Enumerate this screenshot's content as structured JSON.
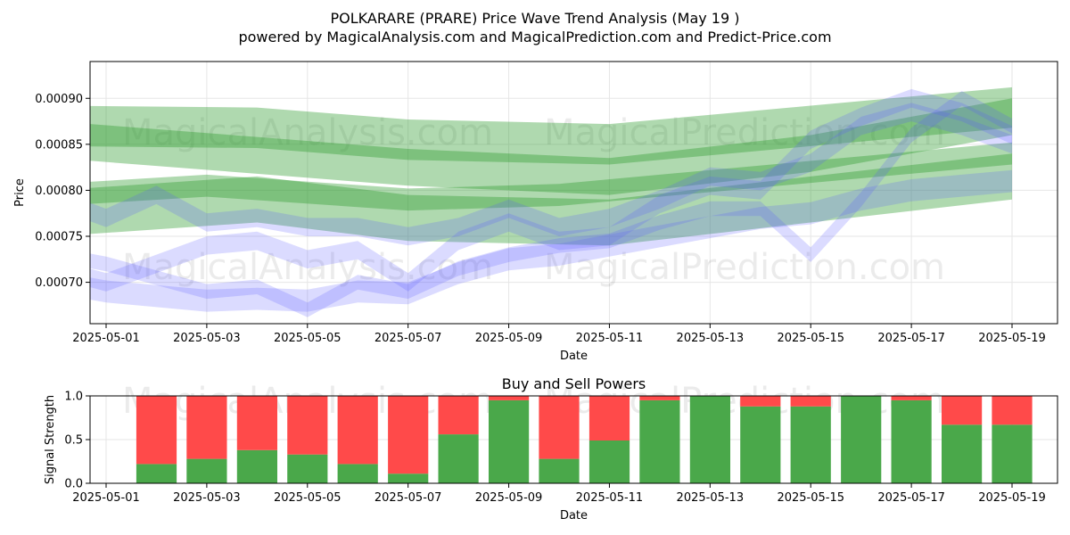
{
  "title": "POLKARARE (PRARE) Price Wave Trend Analysis (May 19 )",
  "subtitle": "powered by MagicalAnalysis.com and MagicalPrediction.com and Predict-Price.com",
  "watermarks": [
    "MagicalAnalysis.com",
    "MagicalPrediction.com"
  ],
  "colors": {
    "green_band": "#2e9a2e",
    "blue_band": "#5a5aff",
    "buy": "#4aa84a",
    "sell": "#ff4a4a",
    "grid": "#e6e6e6"
  },
  "chart_data": [
    {
      "type": "area",
      "title": "",
      "xlabel": "Date",
      "ylabel": "Price",
      "x_ticks": [
        "2025-05-01",
        "2025-05-03",
        "2025-05-05",
        "2025-05-07",
        "2025-05-09",
        "2025-05-11",
        "2025-05-13",
        "2025-05-15",
        "2025-05-17",
        "2025-05-19"
      ],
      "y_ticks": [
        "0.00070",
        "0.00075",
        "0.00080",
        "0.00085",
        "0.00090"
      ],
      "xlim": [
        "2025-04-30",
        "2025-05-20"
      ],
      "ylim": [
        0.000655,
        0.00094
      ],
      "grid": true,
      "series": [
        {
          "color": "green",
          "x": [
            "2025-04-30",
            "2025-05-04",
            "2025-05-07",
            "2025-05-11",
            "2025-05-15",
            "2025-05-19"
          ],
          "center": [
            0.00087,
            0.000868,
            0.000855,
            0.00085,
            0.00087,
            0.00089
          ],
          "half_width": 2.2e-05
        },
        {
          "color": "green",
          "x": [
            "2025-04-30",
            "2025-05-04",
            "2025-05-07",
            "2025-05-11",
            "2025-05-15",
            "2025-05-19"
          ],
          "center": [
            0.000855,
            0.000838,
            0.000825,
            0.000815,
            0.00084,
            0.00088
          ],
          "half_width": 2e-05
        },
        {
          "color": "green",
          "x": [
            "2025-04-30",
            "2025-05-04",
            "2025-05-07",
            "2025-05-11",
            "2025-05-15",
            "2025-05-19"
          ],
          "center": [
            0.000775,
            0.00079,
            0.00077,
            0.000765,
            0.00079,
            0.000815
          ],
          "half_width": 2.5e-05
        },
        {
          "color": "green",
          "x": [
            "2025-04-30",
            "2025-05-03",
            "2025-05-07",
            "2025-05-10",
            "2025-05-14",
            "2025-05-19"
          ],
          "center": [
            0.000795,
            0.000805,
            0.00079,
            0.000795,
            0.000815,
            0.00084
          ],
          "half_width": 1.2e-05
        },
        {
          "color": "blue",
          "x": [
            "2025-04-30",
            "2025-05-01",
            "2025-05-02",
            "2025-05-03",
            "2025-05-04",
            "2025-05-05",
            "2025-05-06",
            "2025-05-07",
            "2025-05-08",
            "2025-05-09",
            "2025-05-10",
            "2025-05-11",
            "2025-05-12",
            "2025-05-13",
            "2025-05-14",
            "2025-05-15",
            "2025-05-16",
            "2025-05-17",
            "2025-05-18",
            "2025-05-19"
          ],
          "center": [
            0.000715,
            0.0007,
            0.00072,
            0.00074,
            0.000745,
            0.000725,
            0.000735,
            0.0007,
            0.000745,
            0.000765,
            0.000745,
            0.00075,
            0.000785,
            0.000805,
            0.0008,
            0.000855,
            0.00088,
            0.0009,
            0.000885,
            0.00086
          ],
          "half_width": 1e-05
        },
        {
          "color": "blue",
          "x": [
            "2025-04-30",
            "2025-05-01",
            "2025-05-02",
            "2025-05-03",
            "2025-05-04",
            "2025-05-05",
            "2025-05-06",
            "2025-05-07",
            "2025-05-08",
            "2025-05-09",
            "2025-05-10",
            "2025-05-11",
            "2025-05-12",
            "2025-05-13",
            "2025-05-14",
            "2025-05-15",
            "2025-05-16",
            "2025-05-17",
            "2025-05-18",
            "2025-05-19"
          ],
          "center": [
            0.00079,
            0.00077,
            0.000795,
            0.000765,
            0.00077,
            0.00076,
            0.00076,
            0.00075,
            0.00076,
            0.00078,
            0.00076,
            0.00077,
            0.00079,
            0.000815,
            0.00081,
            0.00083,
            0.00087,
            0.000885,
            0.00087,
            0.00085
          ],
          "half_width": 1e-05
        },
        {
          "color": "blue",
          "x": [
            "2025-04-30",
            "2025-05-01",
            "2025-05-02",
            "2025-05-03",
            "2025-05-04",
            "2025-05-05",
            "2025-05-06",
            "2025-05-07",
            "2025-05-08",
            "2025-05-09",
            "2025-05-10",
            "2025-05-11",
            "2025-05-12",
            "2025-05-13",
            "2025-05-14",
            "2025-05-15",
            "2025-05-16",
            "2025-05-17",
            "2025-05-18",
            "2025-05-19"
          ],
          "center": [
            0.0007,
            0.00069,
            0.000685,
            0.00068,
            0.000682,
            0.00068,
            0.00069,
            0.000688,
            0.00071,
            0.000725,
            0.00073,
            0.00074,
            0.00075,
            0.00076,
            0.00077,
            0.000775,
            0.00079,
            0.0008,
            0.000805,
            0.00081
          ],
          "half_width": 1.2e-05
        },
        {
          "color": "blue",
          "x": [
            "2025-04-30",
            "2025-05-01",
            "2025-05-02",
            "2025-05-03",
            "2025-05-04",
            "2025-05-05",
            "2025-05-06",
            "2025-05-07",
            "2025-05-08",
            "2025-05-09",
            "2025-05-10",
            "2025-05-11",
            "2025-05-12",
            "2025-05-13",
            "2025-05-14",
            "2025-05-15",
            "2025-05-16",
            "2025-05-17",
            "2025-05-18",
            "2025-05-19"
          ],
          "center": [
            0.00073,
            0.00072,
            0.000705,
            0.00069,
            0.000695,
            0.00067,
            0.0007,
            0.00069,
            0.000715,
            0.00073,
            0.00074,
            0.000745,
            0.000765,
            0.00078,
            0.00078,
            0.00073,
            0.00079,
            0.00086,
            0.0009,
            0.00087
          ],
          "half_width": 8e-06
        }
      ]
    },
    {
      "type": "bar",
      "title": "Buy and Sell Powers",
      "xlabel": "Date",
      "ylabel": "Signal Strength",
      "x_ticks": [
        "2025-05-01",
        "2025-05-03",
        "2025-05-05",
        "2025-05-07",
        "2025-05-09",
        "2025-05-11",
        "2025-05-13",
        "2025-05-15",
        "2025-05-17",
        "2025-05-19"
      ],
      "y_ticks": [
        "0.0",
        "0.5",
        "1.0"
      ],
      "ylim": [
        0,
        1
      ],
      "grid": true,
      "categories": [
        "2025-05-02",
        "2025-05-03",
        "2025-05-04",
        "2025-05-05",
        "2025-05-06",
        "2025-05-07",
        "2025-05-08",
        "2025-05-09",
        "2025-05-10",
        "2025-05-11",
        "2025-05-12",
        "2025-05-13",
        "2025-05-14",
        "2025-05-15",
        "2025-05-16",
        "2025-05-17",
        "2025-05-18",
        "2025-05-19"
      ],
      "series": [
        {
          "values": [
            0.22,
            0.28,
            0.38,
            0.33,
            0.22,
            0.11,
            0.56,
            0.95,
            0.28,
            0.49,
            0.95,
            1.0,
            0.88,
            0.88,
            1.0,
            0.95,
            0.67,
            0.67
          ]
        },
        {
          "values": [
            0.78,
            0.72,
            0.62,
            0.67,
            0.78,
            0.89,
            0.44,
            0.05,
            0.72,
            0.51,
            0.05,
            0.0,
            0.12,
            0.12,
            0.0,
            0.05,
            0.33,
            0.33
          ]
        }
      ]
    }
  ]
}
